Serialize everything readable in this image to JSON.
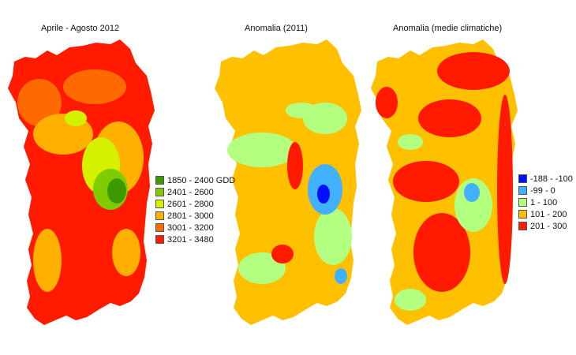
{
  "maps": [
    {
      "title": "Aprile - Agosto 2012",
      "base_color": "#ff1a00",
      "patches": [
        {
          "color": "#ff6a00"
        },
        {
          "color": "#ff6a00"
        },
        {
          "color": "#ffb000"
        },
        {
          "color": "#ffb000"
        },
        {
          "color": "#ffb000"
        },
        {
          "color": "#d4f200"
        },
        {
          "color": "#7fcc00"
        },
        {
          "color": "#3c9a00"
        },
        {
          "color": "#d4f200"
        },
        {
          "color": "#ffb000"
        }
      ]
    },
    {
      "title": "Anomalia (2011)",
      "base_color": "#ffc000",
      "patches": [
        {
          "color": "#b3ff80"
        },
        {
          "color": "#b3ff80"
        },
        {
          "color": "#b3ff80"
        },
        {
          "color": "#b3ff80"
        },
        {
          "color": "#40b0ff"
        },
        {
          "color": "#0010ff"
        },
        {
          "color": "#ff1a00"
        },
        {
          "color": "#ff1a00"
        },
        {
          "color": "#b3ff80"
        },
        {
          "color": "#40b0ff"
        }
      ]
    },
    {
      "title": "Anomalia (medie climatiche)",
      "base_color": "#ffc000",
      "patches": [
        {
          "color": "#ff1a00"
        },
        {
          "color": "#ff1a00"
        },
        {
          "color": "#ff1a00"
        },
        {
          "color": "#ff1a00"
        },
        {
          "color": "#ff1a00"
        },
        {
          "color": "#b3ff80"
        },
        {
          "color": "#b3ff80"
        },
        {
          "color": "#40b0ff"
        },
        {
          "color": "#ff1a00"
        },
        {
          "color": "#b3ff80"
        }
      ]
    }
  ],
  "legend_gdd": {
    "items": [
      {
        "label": "1850 - 2400 GDD",
        "color": "#3c9a00"
      },
      {
        "label": "2401 - 2600",
        "color": "#7fcc00"
      },
      {
        "label": "2601 - 2800",
        "color": "#d4f200"
      },
      {
        "label": "2801 - 3000",
        "color": "#ffb000"
      },
      {
        "label": "3001 - 3200",
        "color": "#ff6a00"
      },
      {
        "label": "3201 - 3480",
        "color": "#ff1a00"
      }
    ]
  },
  "legend_anomaly": {
    "items": [
      {
        "label": "-188 - -100",
        "color": "#0010ff"
      },
      {
        "label": "-99 - 0",
        "color": "#40b0ff"
      },
      {
        "label": "1 - 100",
        "color": "#b3ff80"
      },
      {
        "label": "101 - 200",
        "color": "#ffc000"
      },
      {
        "label": "201 - 300",
        "color": "#ff1a00"
      }
    ]
  }
}
